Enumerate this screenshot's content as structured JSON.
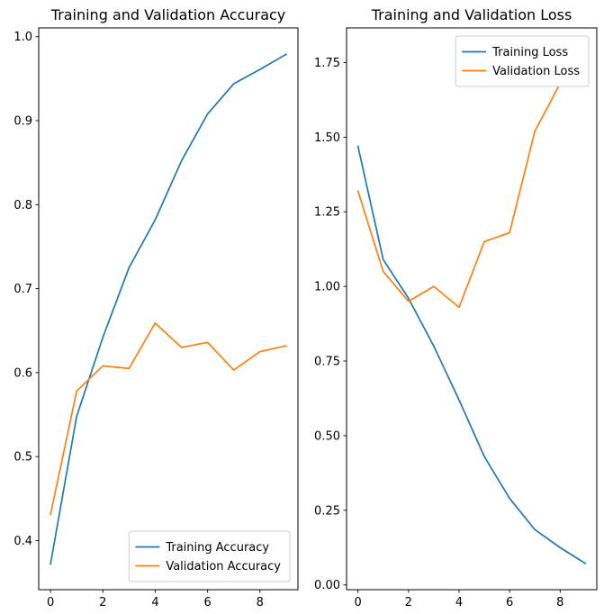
{
  "chart_data": [
    {
      "type": "line",
      "title": "Training and Validation Accuracy",
      "xlabel": "",
      "ylabel": "",
      "x": [
        0,
        1,
        2,
        3,
        4,
        5,
        6,
        7,
        8,
        9
      ],
      "series": [
        {
          "name": "Training Accuracy",
          "color": "#1f77b4",
          "values": [
            0.372,
            0.548,
            0.642,
            0.725,
            0.782,
            0.852,
            0.908,
            0.944,
            0.961,
            0.979
          ]
        },
        {
          "name": "Validation Accuracy",
          "color": "#ff7f0e",
          "values": [
            0.431,
            0.578,
            0.608,
            0.605,
            0.659,
            0.63,
            0.636,
            0.603,
            0.625,
            0.632
          ]
        }
      ],
      "xlim": [
        -0.45,
        9.45
      ],
      "ylim": [
        0.3416,
        1.0104
      ],
      "xticks": [
        {
          "value": 0,
          "label": "0"
        },
        {
          "value": 2,
          "label": "2"
        },
        {
          "value": 4,
          "label": "4"
        },
        {
          "value": 6,
          "label": "6"
        },
        {
          "value": 8,
          "label": "8"
        }
      ],
      "yticks": [
        {
          "value": 0.4,
          "label": "0.4"
        },
        {
          "value": 0.5,
          "label": "0.5"
        },
        {
          "value": 0.6,
          "label": "0.6"
        },
        {
          "value": 0.7,
          "label": "0.7"
        },
        {
          "value": 0.8,
          "label": "0.8"
        },
        {
          "value": 0.9,
          "label": "0.9"
        },
        {
          "value": 1.0,
          "label": "1.0"
        }
      ],
      "legend": {
        "position": "lower right",
        "labels": [
          "Training Accuracy",
          "Validation Accuracy"
        ]
      },
      "grid": false
    },
    {
      "type": "line",
      "title": "Training and Validation Loss",
      "xlabel": "",
      "ylabel": "",
      "x": [
        0,
        1,
        2,
        3,
        4,
        5,
        6,
        7,
        8,
        9
      ],
      "series": [
        {
          "name": "Training Loss",
          "color": "#1f77b4",
          "values": [
            1.47,
            1.09,
            0.96,
            0.8,
            0.62,
            0.43,
            0.29,
            0.185,
            0.125,
            0.072
          ]
        },
        {
          "name": "Validation Loss",
          "color": "#ff7f0e",
          "values": [
            1.32,
            1.05,
            0.95,
            1.0,
            0.93,
            1.15,
            1.18,
            1.52,
            1.68,
            1.78
          ]
        }
      ],
      "xlim": [
        -0.45,
        9.45
      ],
      "ylim": [
        -0.016,
        1.866
      ],
      "xticks": [
        {
          "value": 0,
          "label": "0"
        },
        {
          "value": 2,
          "label": "2"
        },
        {
          "value": 4,
          "label": "4"
        },
        {
          "value": 6,
          "label": "6"
        },
        {
          "value": 8,
          "label": "8"
        }
      ],
      "yticks": [
        {
          "value": 0.0,
          "label": "0.00"
        },
        {
          "value": 0.25,
          "label": "0.25"
        },
        {
          "value": 0.5,
          "label": "0.50"
        },
        {
          "value": 0.75,
          "label": "0.75"
        },
        {
          "value": 1.0,
          "label": "1.00"
        },
        {
          "value": 1.25,
          "label": "1.25"
        },
        {
          "value": 1.5,
          "label": "1.50"
        },
        {
          "value": 1.75,
          "label": "1.75"
        }
      ],
      "legend": {
        "position": "upper right",
        "labels": [
          "Training Loss",
          "Validation Loss"
        ]
      },
      "grid": false
    }
  ],
  "colors": {
    "training": "#1f77b4",
    "validation": "#ff7f0e",
    "axes": "#000000",
    "legend_border": "#cccccc",
    "background": "#ffffff"
  }
}
